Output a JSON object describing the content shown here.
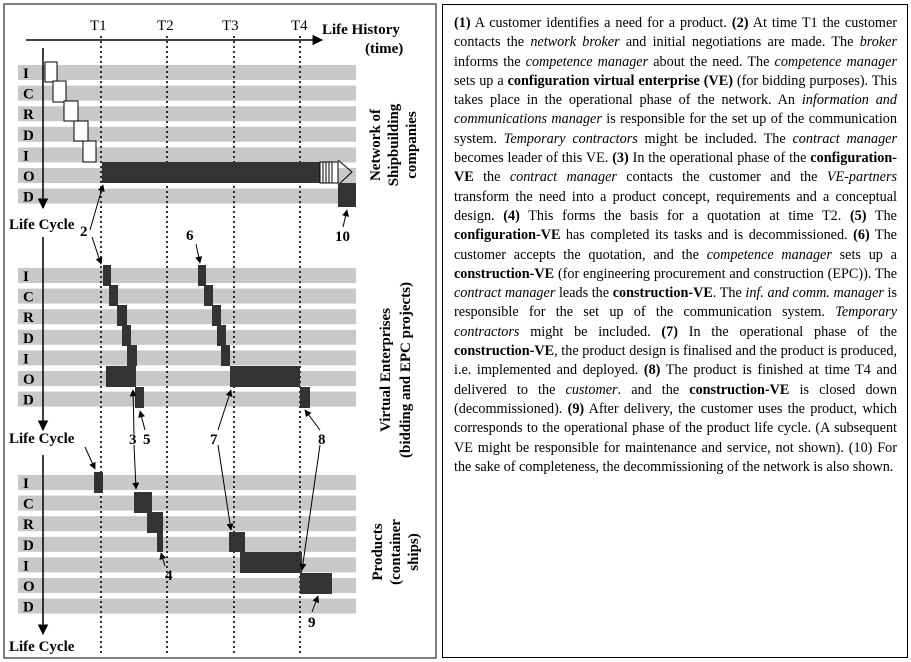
{
  "diagram": {
    "axis_title_line1": "Life History",
    "axis_title_line2": "(time)",
    "time_markers": [
      "T1",
      "T2",
      "T3",
      "T4"
    ],
    "row_letters": [
      "I",
      "C",
      "R",
      "D",
      "I",
      "O",
      "D"
    ],
    "life_cycle_label": "Life Cycle",
    "sections": [
      {
        "title_line1": "Network of",
        "title_line2": "Shipbuilding",
        "title_line3": "companies"
      },
      {
        "title_line1": "Virtual Enterprises",
        "title_line2": "(bidding and EPC projects)"
      },
      {
        "title_line1": "Products",
        "title_line2": "(container",
        "title_line3": "ships)"
      }
    ],
    "callouts": [
      "2",
      "6",
      "3",
      "5",
      "7",
      "8",
      "4",
      "9",
      "10"
    ]
  },
  "description": [
    {
      "t": "(1)",
      "s": "b"
    },
    {
      "t": " A customer identifies a need for a product. "
    },
    {
      "t": "(2)",
      "s": "b"
    },
    {
      "t": " At time T1 the customer contacts the "
    },
    {
      "t": "network broker",
      "s": "i"
    },
    {
      "t": " and initial negotiations are made. The "
    },
    {
      "t": "broker",
      "s": "i"
    },
    {
      "t": " informs the "
    },
    {
      "t": "competence manager",
      "s": "i"
    },
    {
      "t": " about the need. The "
    },
    {
      "t": "competence manager",
      "s": "i"
    },
    {
      "t": " sets up a "
    },
    {
      "t": "configuration virtual enterprise (VE)",
      "s": "b"
    },
    {
      "t": " (for bidding purposes). This takes place in the operational phase of the network. An "
    },
    {
      "t": "information and communications manager",
      "s": "i"
    },
    {
      "t": " is responsible for the set up of the communication system. "
    },
    {
      "t": "Temporary contractors",
      "s": "i"
    },
    {
      "t": " might be included. The "
    },
    {
      "t": "contract manager",
      "s": "i"
    },
    {
      "t": " becomes leader of this VE. "
    },
    {
      "t": "(3)",
      "s": "b"
    },
    {
      "t": " In the operational phase of the "
    },
    {
      "t": "configuration-VE",
      "s": "b"
    },
    {
      "t": " the "
    },
    {
      "t": "contract manager",
      "s": "i"
    },
    {
      "t": " contacts the customer and the "
    },
    {
      "t": "VE-partners",
      "s": "i"
    },
    {
      "t": " transform the need into a product concept, requirements and a conceptual design. "
    },
    {
      "t": "(4)",
      "s": "b"
    },
    {
      "t": " This forms the basis for a quotation at time T2. "
    },
    {
      "t": "(5)",
      "s": "b"
    },
    {
      "t": " The "
    },
    {
      "t": "configuration-VE",
      "s": "b"
    },
    {
      "t": " has completed its tasks and is decommissioned. "
    },
    {
      "t": "(6)",
      "s": "b"
    },
    {
      "t": " The customer accepts the quotation, and the "
    },
    {
      "t": "competence manager",
      "s": "i"
    },
    {
      "t": " sets up a "
    },
    {
      "t": "construction-VE",
      "s": "b"
    },
    {
      "t": " (for engineering procurement and construction (EPC)). The "
    },
    {
      "t": "contract manager",
      "s": "i"
    },
    {
      "t": " leads the "
    },
    {
      "t": "construction-VE",
      "s": "b"
    },
    {
      "t": ". The "
    },
    {
      "t": "inf. and comm. manager",
      "s": "i"
    },
    {
      "t": " is responsible for the set up of the communication system. "
    },
    {
      "t": "Temporary contractors",
      "s": "i"
    },
    {
      "t": " might be included. "
    },
    {
      "t": "(7)",
      "s": "b"
    },
    {
      "t": " In the operational phase of the "
    },
    {
      "t": "construction-VE",
      "s": "b"
    },
    {
      "t": ", the product design is finalised and the product is produced, i.e. implemented and deployed. "
    },
    {
      "t": "(8)",
      "s": "b"
    },
    {
      "t": " The product is finished at time T4 and delivered to the "
    },
    {
      "t": "customer",
      "s": "i"
    },
    {
      "t": ". and the "
    },
    {
      "t": "construction-VE",
      "s": "b"
    },
    {
      "t": " is closed down (decommissioned). "
    },
    {
      "t": "(9)",
      "s": "b"
    },
    {
      "t": " After delivery, the customer uses the product, which corresponds to the operational phase of the product life cycle. (A subsequent VE might be responsible for maintenance and service, not shown). (10) For the sake of completeness, the decommissioning of the network is also shown."
    }
  ],
  "colors": {
    "band": "#c8c8c8",
    "bar": "#333333",
    "text": "#000000"
  }
}
